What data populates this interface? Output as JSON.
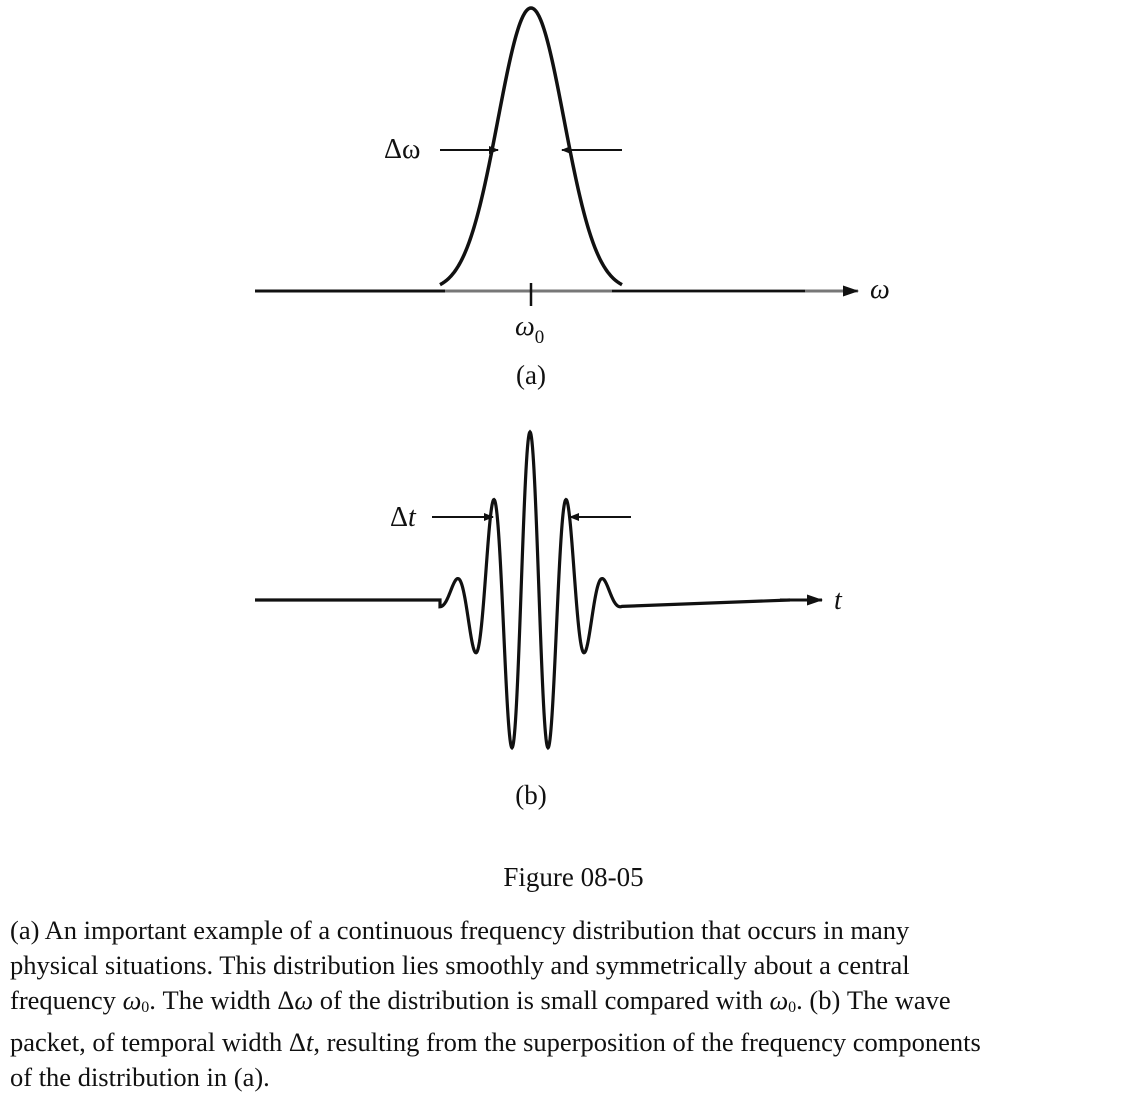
{
  "panel_a": {
    "label": "(a)",
    "axis_label": "ω",
    "tick_label": "ω",
    "tick_sub": "0",
    "width_label": "Δω"
  },
  "panel_b": {
    "label": "(b)",
    "axis_label": "t",
    "width_label_delta": "Δ",
    "width_label_var": "t"
  },
  "figure_title": "Figure 08-05",
  "caption_lines": [
    [
      {
        "t": "(a) An important example of a continuous frequency distribution that occurs in many"
      }
    ],
    [
      {
        "t": "physical situations. This distribution lies smoothly and symmetrically about a central"
      }
    ],
    [
      {
        "t": "frequency "
      },
      {
        "t": "ω",
        "i": true
      },
      {
        "t": "0",
        "sub": true
      },
      {
        "t": ". The width Δ"
      },
      {
        "t": "ω",
        "i": true
      },
      {
        "t": " of the distribution is small compared with "
      },
      {
        "t": "ω",
        "i": true
      },
      {
        "t": "0",
        "sub": true
      },
      {
        "t": ". (b) The wave"
      }
    ],
    [
      {
        "t": "packet, of temporal width Δ"
      },
      {
        "t": "t",
        "i": true
      },
      {
        "t": ", resulting from the superposition of the frequency components"
      }
    ],
    [
      {
        "t": "of the distribution in (a)."
      }
    ]
  ]
}
